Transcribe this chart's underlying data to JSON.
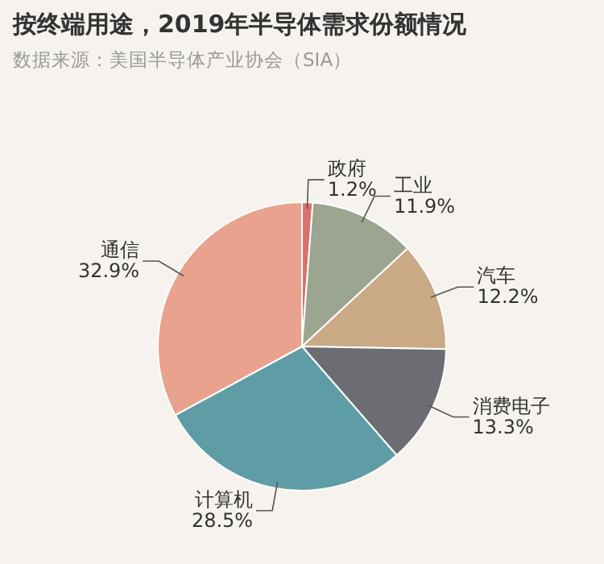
{
  "chart_data": {
    "type": "pie",
    "title": "按终端用途，2019年半导体需求份额情况",
    "annotations": [
      "数据来源：美国半导体产业协会（SIA）"
    ],
    "categories": [
      "政府",
      "工业",
      "汽车",
      "消费电子",
      "计算机",
      "通信"
    ],
    "values": [
      1.2,
      11.9,
      12.2,
      13.3,
      28.5,
      32.9
    ],
    "value_labels": [
      "1.2%",
      "11.9%",
      "12.2%",
      "13.3%",
      "28.5%",
      "32.9%"
    ],
    "colors": [
      "#d9716c",
      "#9ca58f",
      "#c9aa85",
      "#6c6d72",
      "#5f9da6",
      "#e9a28e"
    ],
    "legend": false
  }
}
